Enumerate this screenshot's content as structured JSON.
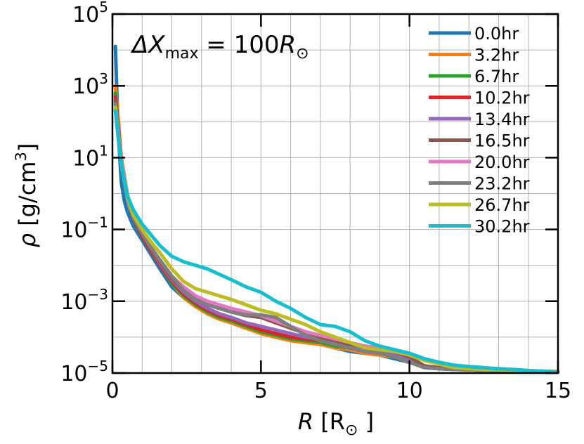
{
  "chart_data": {
    "type": "line",
    "title": "",
    "annotation": {
      "prefix": "ΔX",
      "sub": "max",
      "eq": " = 100",
      "unit": "R",
      "unit_sub": "⊙"
    },
    "xlabel": {
      "var": "R",
      "unit_open": " [R",
      "unit_sub": "⊙",
      "unit_close": " ]"
    },
    "ylabel": {
      "var": "ρ",
      "text": " [g/cm",
      "sup": "3",
      "close": "]"
    },
    "xlim": [
      0,
      15
    ],
    "ylim_log10": [
      -5,
      5
    ],
    "yscale": "log",
    "grid": true,
    "legend_position": "top-right",
    "x_ticks": [
      "0",
      "5",
      "10",
      "15"
    ],
    "x_tick_values": [
      0,
      5,
      10,
      15
    ],
    "y_ticks": [
      {
        "base": "10",
        "exp": "5",
        "value": 5
      },
      {
        "base": "10",
        "exp": "3",
        "value": 3
      },
      {
        "base": "10",
        "exp": "1",
        "value": 1
      },
      {
        "base": "10",
        "exp": "−1",
        "value": -1
      },
      {
        "base": "10",
        "exp": "−3",
        "value": -3
      },
      {
        "base": "10",
        "exp": "−5",
        "value": -5
      }
    ],
    "series": [
      {
        "name": "0.0hr",
        "color": "#1f77b4",
        "x": [
          0.1,
          0.15,
          0.2,
          0.3,
          0.4,
          0.5,
          0.7,
          1.0,
          1.3,
          1.6,
          2.0,
          2.4,
          2.8,
          3.2,
          3.6,
          4.0,
          4.5,
          5.0,
          5.5,
          6.0,
          6.5,
          7.0,
          7.5,
          8.0,
          8.5,
          9.0,
          9.5,
          10.0,
          10.5,
          11.0,
          11.5,
          12.0,
          12.5,
          13.0,
          13.5,
          14.0,
          14.5,
          15.0
        ],
        "log10_y": [
          4.1,
          2.8,
          1.6,
          0.3,
          -0.2,
          -0.5,
          -0.9,
          -1.3,
          -1.7,
          -2.1,
          -2.6,
          -2.9,
          -3.1,
          -3.3,
          -3.45,
          -3.6,
          -3.75,
          -3.85,
          -3.95,
          -4.05,
          -4.15,
          -4.2,
          -4.3,
          -4.4,
          -4.45,
          -4.5,
          -4.6,
          -4.7,
          -4.85,
          -4.88,
          -4.9,
          -4.9,
          -4.92,
          -4.93,
          -4.95,
          -4.96,
          -4.97,
          -4.98
        ]
      },
      {
        "name": "3.2hr",
        "color": "#ff7f0e",
        "x": [
          0.1,
          0.2,
          0.3,
          0.5,
          0.7,
          1.0,
          1.3,
          1.6,
          2.0,
          2.4,
          2.8,
          3.2,
          3.6,
          4.0,
          4.5,
          5.0,
          5.5,
          6.0,
          6.5,
          7.0,
          7.5,
          8.0,
          8.5,
          9.0,
          9.5,
          10.0,
          10.5,
          11.0,
          11.5,
          12.0,
          12.5,
          13.0,
          13.5,
          14.0,
          14.5,
          15.0
        ],
        "log10_y": [
          3.0,
          2.0,
          1.0,
          0.0,
          -0.7,
          -1.2,
          -1.6,
          -2.0,
          -2.5,
          -2.9,
          -3.15,
          -3.35,
          -3.5,
          -3.6,
          -3.75,
          -3.9,
          -4.0,
          -4.1,
          -4.15,
          -4.2,
          -4.3,
          -4.35,
          -4.45,
          -4.5,
          -4.55,
          -4.65,
          -4.82,
          -4.86,
          -4.9,
          -4.91,
          -4.92,
          -4.93,
          -4.94,
          -4.95,
          -4.96,
          -4.97
        ]
      },
      {
        "name": "6.7hr",
        "color": "#2ca02c",
        "x": [
          0.1,
          0.2,
          0.3,
          0.5,
          0.7,
          1.0,
          1.3,
          1.6,
          2.0,
          2.4,
          2.8,
          3.2,
          3.6,
          4.0,
          4.5,
          5.0,
          5.5,
          6.0,
          6.5,
          7.0,
          7.5,
          8.0,
          8.5,
          9.0,
          9.5,
          10.0,
          10.5,
          11.0,
          11.5,
          12.0,
          12.5,
          13.0,
          13.5,
          14.0,
          14.5,
          15.0
        ],
        "log10_y": [
          2.8,
          1.8,
          0.9,
          -0.1,
          -0.7,
          -1.2,
          -1.6,
          -2.0,
          -2.5,
          -2.85,
          -3.1,
          -3.3,
          -3.45,
          -3.55,
          -3.7,
          -3.85,
          -3.95,
          -4.05,
          -4.1,
          -4.15,
          -4.25,
          -4.3,
          -4.4,
          -4.45,
          -4.55,
          -4.7,
          -4.84,
          -4.87,
          -4.9,
          -4.91,
          -4.92,
          -4.93,
          -4.94,
          -4.95,
          -4.96,
          -4.97
        ]
      },
      {
        "name": "10.2hr",
        "color": "#d62728",
        "x": [
          0.1,
          0.2,
          0.3,
          0.5,
          0.7,
          1.0,
          1.3,
          1.6,
          2.0,
          2.4,
          2.8,
          3.2,
          3.6,
          4.0,
          4.5,
          5.0,
          5.5,
          6.0,
          6.5,
          7.0,
          7.5,
          8.0,
          8.5,
          9.0,
          9.5,
          10.0,
          10.5,
          11.0,
          11.5,
          12.0,
          12.5,
          13.0,
          13.5,
          14.0,
          14.5,
          15.0
        ],
        "log10_y": [
          2.7,
          1.8,
          0.9,
          -0.1,
          -0.7,
          -1.2,
          -1.6,
          -2.0,
          -2.45,
          -2.8,
          -3.05,
          -3.25,
          -3.4,
          -3.5,
          -3.65,
          -3.8,
          -3.9,
          -4.0,
          -4.05,
          -4.1,
          -4.2,
          -4.3,
          -4.35,
          -4.4,
          -4.5,
          -4.65,
          -4.82,
          -4.86,
          -4.9,
          -4.91,
          -4.92,
          -4.93,
          -4.94,
          -4.95,
          -4.96,
          -4.97
        ]
      },
      {
        "name": "13.4hr",
        "color": "#9467bd",
        "x": [
          0.1,
          0.2,
          0.3,
          0.5,
          0.7,
          1.0,
          1.3,
          1.6,
          2.0,
          2.4,
          2.8,
          3.2,
          3.6,
          4.0,
          4.5,
          5.0,
          5.5,
          6.0,
          6.5,
          7.0,
          7.5,
          8.0,
          8.5,
          9.0,
          9.5,
          10.0,
          10.5,
          11.0,
          11.5,
          12.0,
          12.5,
          13.0,
          13.5,
          14.0,
          14.5,
          15.0
        ],
        "log10_y": [
          2.6,
          1.7,
          0.9,
          -0.1,
          -0.7,
          -1.15,
          -1.55,
          -1.95,
          -2.4,
          -2.75,
          -3.0,
          -3.2,
          -3.35,
          -3.45,
          -3.6,
          -3.7,
          -3.8,
          -3.9,
          -4.0,
          -4.05,
          -4.15,
          -4.25,
          -4.3,
          -4.35,
          -4.45,
          -4.6,
          -4.8,
          -4.85,
          -4.88,
          -4.9,
          -4.91,
          -4.92,
          -4.93,
          -4.94,
          -4.95,
          -4.96
        ]
      },
      {
        "name": "16.5hr",
        "color": "#8c564b",
        "x": [
          0.1,
          0.2,
          0.3,
          0.5,
          0.7,
          1.0,
          1.3,
          1.6,
          2.0,
          2.4,
          2.8,
          3.2,
          3.6,
          4.0,
          4.5,
          5.0,
          5.5,
          6.0,
          6.5,
          7.0,
          7.5,
          8.0,
          8.5,
          9.0,
          9.5,
          10.0,
          10.5,
          11.0,
          11.5,
          12.0,
          12.5,
          13.0,
          13.5,
          14.0,
          14.5,
          15.0
        ],
        "log10_y": [
          2.6,
          1.7,
          0.9,
          -0.1,
          -0.7,
          -1.15,
          -1.55,
          -1.9,
          -2.35,
          -2.7,
          -2.95,
          -3.1,
          -3.2,
          -3.3,
          -3.4,
          -3.45,
          -3.6,
          -3.75,
          -3.9,
          -4.0,
          -4.1,
          -4.2,
          -4.25,
          -4.3,
          -4.4,
          -4.55,
          -4.8,
          -4.85,
          -4.88,
          -4.9,
          -4.91,
          -4.92,
          -4.93,
          -4.94,
          -4.95,
          -4.96
        ]
      },
      {
        "name": "20.0hr",
        "color": "#e377c2",
        "x": [
          0.1,
          0.2,
          0.3,
          0.5,
          0.7,
          1.0,
          1.3,
          1.6,
          2.0,
          2.4,
          2.8,
          3.2,
          3.6,
          4.0,
          4.5,
          5.0,
          5.5,
          6.0,
          6.5,
          7.0,
          7.5,
          8.0,
          8.5,
          9.0,
          9.5,
          10.0,
          10.5,
          11.0,
          11.5,
          12.0,
          12.5,
          13.0,
          13.5,
          14.0,
          14.5,
          15.0
        ],
        "log10_y": [
          2.5,
          1.7,
          0.9,
          -0.05,
          -0.65,
          -1.1,
          -1.5,
          -1.85,
          -2.3,
          -2.6,
          -2.85,
          -3.0,
          -3.1,
          -3.2,
          -3.3,
          -3.4,
          -3.55,
          -3.7,
          -3.85,
          -3.95,
          -4.05,
          -4.15,
          -4.25,
          -4.3,
          -4.35,
          -4.45,
          -4.6,
          -4.75,
          -4.85,
          -4.88,
          -4.9,
          -4.91,
          -4.92,
          -4.94,
          -4.95,
          -4.96
        ]
      },
      {
        "name": "23.2hr",
        "color": "#7f7f7f",
        "x": [
          0.1,
          0.2,
          0.3,
          0.5,
          0.7,
          1.0,
          1.3,
          1.6,
          2.0,
          2.4,
          2.8,
          3.2,
          3.6,
          4.0,
          4.5,
          5.0,
          5.5,
          5.8,
          6.0,
          6.5,
          7.0,
          7.5,
          8.0,
          8.5,
          9.0,
          9.5,
          10.0,
          10.5,
          11.0,
          11.5,
          12.0,
          12.5,
          13.0,
          13.5,
          14.0,
          14.5,
          15.0
        ],
        "log10_y": [
          2.5,
          1.6,
          0.8,
          -0.1,
          -0.65,
          -1.1,
          -1.5,
          -1.85,
          -2.3,
          -2.7,
          -2.95,
          -3.1,
          -3.2,
          -3.3,
          -3.38,
          -3.38,
          -3.45,
          -3.6,
          -3.7,
          -3.95,
          -4.1,
          -4.2,
          -4.3,
          -4.4,
          -4.45,
          -4.55,
          -4.7,
          -4.85,
          -4.88,
          -4.9,
          -4.91,
          -4.92,
          -4.93,
          -4.94,
          -4.95,
          -4.96,
          -4.97
        ]
      },
      {
        "name": "26.7hr",
        "color": "#bcbd22",
        "x": [
          0.1,
          0.2,
          0.3,
          0.5,
          0.7,
          1.0,
          1.3,
          1.6,
          2.0,
          2.4,
          2.8,
          3.2,
          3.6,
          4.0,
          4.5,
          5.0,
          5.5,
          6.0,
          6.5,
          7.0,
          7.5,
          8.0,
          8.5,
          9.0,
          9.5,
          10.0,
          10.5,
          11.0,
          11.5,
          12.0,
          12.5,
          13.0,
          13.5,
          14.0,
          14.5,
          15.0
        ],
        "log10_y": [
          2.4,
          1.5,
          0.8,
          -0.1,
          -0.6,
          -1.0,
          -1.35,
          -1.65,
          -2.1,
          -2.45,
          -2.65,
          -2.75,
          -2.85,
          -2.95,
          -3.1,
          -3.25,
          -3.35,
          -3.5,
          -3.65,
          -3.85,
          -4.0,
          -4.15,
          -4.3,
          -4.35,
          -4.4,
          -4.5,
          -4.65,
          -4.75,
          -4.85,
          -4.88,
          -4.9,
          -4.91,
          -4.92,
          -4.94,
          -4.95,
          -4.96
        ]
      },
      {
        "name": "30.2hr",
        "color": "#17becf",
        "x": [
          0.1,
          0.2,
          0.3,
          0.5,
          0.7,
          1.0,
          1.3,
          1.6,
          2.0,
          2.4,
          2.8,
          3.2,
          3.6,
          4.0,
          4.5,
          5.0,
          5.5,
          6.0,
          6.5,
          7.0,
          7.5,
          8.0,
          8.5,
          9.0,
          9.5,
          10.0,
          10.5,
          11.0,
          11.5,
          12.0,
          12.5,
          13.0,
          13.5,
          14.0,
          14.5,
          15.0
        ],
        "log10_y": [
          2.3,
          1.5,
          0.8,
          -0.05,
          -0.45,
          -0.85,
          -1.15,
          -1.45,
          -1.75,
          -1.9,
          -2.0,
          -2.1,
          -2.25,
          -2.4,
          -2.6,
          -2.75,
          -3.0,
          -3.2,
          -3.45,
          -3.65,
          -3.7,
          -3.85,
          -4.1,
          -4.25,
          -4.35,
          -4.45,
          -4.6,
          -4.7,
          -4.78,
          -4.82,
          -4.85,
          -4.88,
          -4.9,
          -4.93,
          -4.95,
          -4.97
        ]
      }
    ]
  }
}
